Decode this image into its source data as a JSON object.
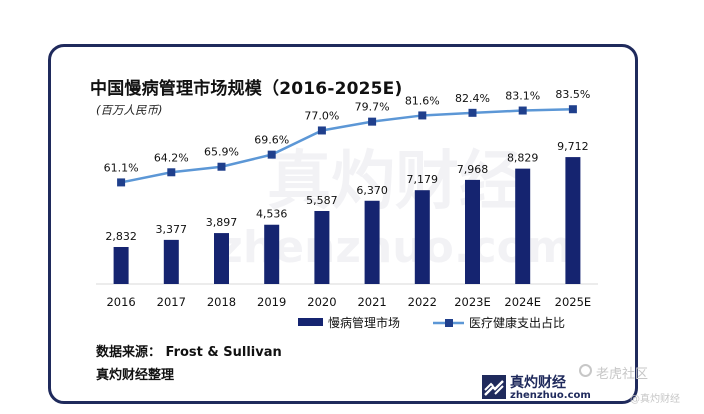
{
  "chart_data": {
    "type": "bar+line",
    "title": "中国慢病管理市场规模（2016-2025E)",
    "unit_label": "(百万人民币)",
    "categories": [
      "2016",
      "2017",
      "2018",
      "2019",
      "2020",
      "2021",
      "2022",
      "2023E",
      "2024E",
      "2025E"
    ],
    "series": [
      {
        "name": "慢病管理市场",
        "kind": "bar",
        "values": [
          2832,
          3377,
          3897,
          4536,
          5587,
          6370,
          7179,
          7968,
          8829,
          9712
        ],
        "labels": [
          "2,832",
          "3,377",
          "3,897",
          "4,536",
          "5,587",
          "6,370",
          "7,179",
          "7,968",
          "8,829",
          "9,712"
        ]
      },
      {
        "name": "医疗健康支出占比",
        "kind": "line",
        "values": [
          61.1,
          64.2,
          65.9,
          69.6,
          77.0,
          79.7,
          81.6,
          82.4,
          83.1,
          83.5
        ],
        "labels": [
          "61.1%",
          "64.2%",
          "65.9%",
          "69.6%",
          "77.0%",
          "79.7%",
          "81.6%",
          "82.4%",
          "83.1%",
          "83.5%"
        ]
      }
    ],
    "bar_ylim": [
      0,
      15000
    ],
    "line_ylim": [
      30,
      90
    ],
    "legend_position": "bottom-right",
    "colors": {
      "bar": "#152470",
      "line": "#5c97d6",
      "marker": "#1f3f8c"
    }
  },
  "watermark": {
    "main": "真灼财经",
    "sub": "zhenzhuo.com"
  },
  "footer": {
    "source": "数据来源： Frost & Sullivan",
    "compiler": "真灼财经整理"
  },
  "logo": {
    "name": "真灼财经",
    "url": "zhenzhuo.com",
    "icon": "zhenzhuo-logo-icon"
  },
  "overlay": {
    "community": "老虎社区",
    "handle": "@真灼财经",
    "icon": "tiger-community-icon"
  }
}
